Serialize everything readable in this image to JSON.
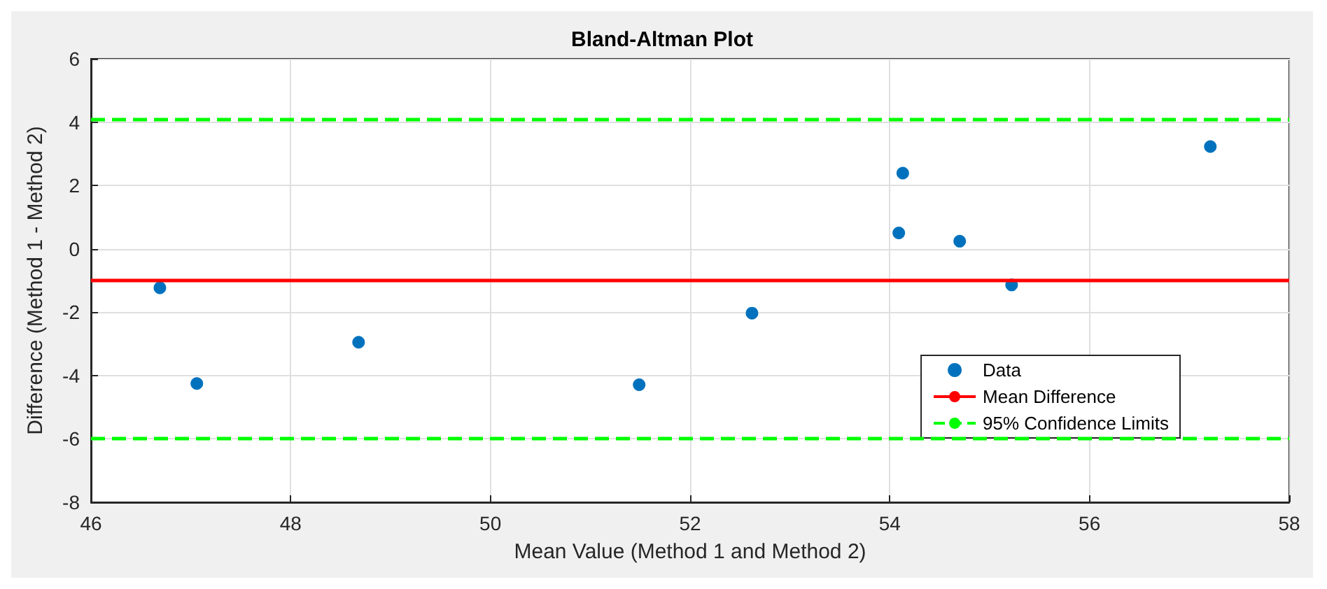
{
  "chart_data": {
    "type": "scatter",
    "title": "Bland-Altman Plot",
    "xlabel": "Mean Value (Method 1 and Method 2)",
    "ylabel": "Difference (Method 1 - Method 2)",
    "x": [
      46.69,
      47.06,
      48.68,
      51.49,
      52.62,
      54.09,
      54.13,
      54.7,
      55.22,
      57.21
    ],
    "series": [
      {
        "name": "Data",
        "color": "#0072bd",
        "values": [
          -1.23,
          -4.25,
          -2.95,
          -4.29,
          -2.03,
          0.5,
          2.39,
          0.24,
          -1.14,
          3.23
        ]
      }
    ],
    "ref_lines": [
      {
        "axis": "y",
        "value": -0.97,
        "label": "Mean Difference",
        "color": "#ff0000",
        "line_style": "solid"
      },
      {
        "axis": "y",
        "value": 4.07,
        "label": "95% Confidence Limits",
        "color": "#00ff00",
        "line_style": "dashed"
      },
      {
        "axis": "y",
        "value": -5.97,
        "color": "#00ff00",
        "line_style": "dashed"
      }
    ],
    "xlim": [
      46,
      58
    ],
    "xticks": [
      46,
      48,
      50,
      52,
      54,
      56,
      58
    ],
    "ylim": [
      -8,
      6
    ],
    "yticks": [
      -8,
      -6,
      -4,
      -2,
      0,
      2,
      4,
      6
    ],
    "grid": true,
    "legend": "bottom right",
    "marker": "circle"
  }
}
